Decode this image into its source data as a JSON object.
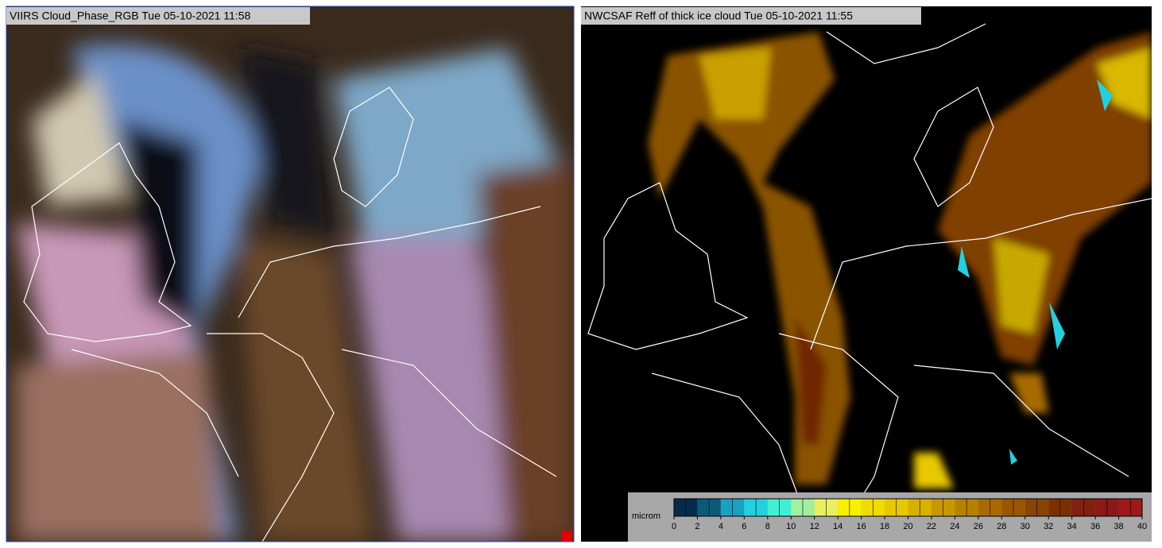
{
  "panels": [
    {
      "title": "VIIRS Cloud_Phase_RGB Tue 05-10-2021 11:58"
    },
    {
      "title": "NWCSAF Reff of thick ice cloud Tue 05-10-2021 11:55"
    }
  ],
  "colorbar": {
    "unit": "microm",
    "range": [
      0,
      40
    ],
    "ticks": [
      0,
      2,
      4,
      6,
      8,
      10,
      12,
      14,
      16,
      18,
      20,
      22,
      24,
      26,
      28,
      30,
      32,
      34,
      36,
      38,
      40
    ],
    "colors": [
      "#062a4a",
      "#0a5a7a",
      "#1aa0c0",
      "#22d0e0",
      "#40f0d0",
      "#a0f0a0",
      "#e8f060",
      "#f8f000",
      "#f0dc00",
      "#e8c800",
      "#d8b000",
      "#c89800",
      "#b88000",
      "#a86a00",
      "#985600",
      "#884400",
      "#7c3000",
      "#802010",
      "#8c1818",
      "#a01818"
    ]
  }
}
